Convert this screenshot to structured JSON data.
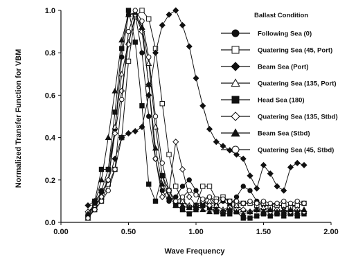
{
  "chart_data": {
    "type": "line",
    "title": "",
    "xlabel": "Wave Frequency",
    "ylabel": "Normalized Transfer Function for VBM",
    "xlim": [
      0.0,
      2.0
    ],
    "ylim": [
      0.0,
      1.0
    ],
    "xticks": [
      0.0,
      0.5,
      1.0,
      1.5,
      2.0
    ],
    "yticks": [
      0.0,
      0.2,
      0.4,
      0.6,
      0.8,
      1.0
    ],
    "xtick_labels": [
      "0.00",
      "0.50",
      "1.00",
      "1.50",
      "2.00"
    ],
    "ytick_labels": [
      "0.0",
      "0.2",
      "0.4",
      "0.6",
      "0.8",
      "1.0"
    ],
    "grid": false,
    "legend": {
      "title": "Ballast Condition",
      "position": "top-right"
    },
    "series": [
      {
        "name": "Following Sea (0)",
        "marker": "filled-circle",
        "points": [
          [
            0.2,
            0.03
          ],
          [
            0.25,
            0.08
          ],
          [
            0.3,
            0.15
          ],
          [
            0.35,
            0.25
          ],
          [
            0.4,
            0.44
          ],
          [
            0.45,
            0.78
          ],
          [
            0.5,
            0.98
          ],
          [
            0.55,
            0.98
          ],
          [
            0.6,
            0.8
          ],
          [
            0.65,
            0.5
          ],
          [
            0.7,
            0.3
          ],
          [
            0.75,
            0.15
          ],
          [
            0.8,
            0.1
          ],
          [
            0.85,
            0.12
          ],
          [
            0.9,
            0.17
          ],
          [
            0.95,
            0.2
          ],
          [
            1.0,
            0.15
          ],
          [
            1.05,
            0.1
          ],
          [
            1.1,
            0.12
          ],
          [
            1.15,
            0.08
          ],
          [
            1.2,
            0.1
          ],
          [
            1.25,
            0.08
          ],
          [
            1.3,
            0.12
          ],
          [
            1.35,
            0.17
          ],
          [
            1.4,
            0.15
          ],
          [
            1.45,
            0.1
          ],
          [
            1.5,
            0.08
          ],
          [
            1.55,
            0.08
          ],
          [
            1.6,
            0.09
          ],
          [
            1.65,
            0.07
          ],
          [
            1.7,
            0.08
          ],
          [
            1.75,
            0.08
          ],
          [
            1.8,
            0.09
          ]
        ]
      },
      {
        "name": "Quatering Sea (45, Port)",
        "marker": "open-square",
        "points": [
          [
            0.2,
            0.03
          ],
          [
            0.25,
            0.06
          ],
          [
            0.3,
            0.1
          ],
          [
            0.35,
            0.18
          ],
          [
            0.4,
            0.25
          ],
          [
            0.45,
            0.4
          ],
          [
            0.5,
            0.76
          ],
          [
            0.55,
            0.97
          ],
          [
            0.6,
            1.0
          ],
          [
            0.65,
            0.96
          ],
          [
            0.7,
            0.82
          ],
          [
            0.75,
            0.56
          ],
          [
            0.8,
            0.32
          ],
          [
            0.85,
            0.17
          ],
          [
            0.9,
            0.1
          ],
          [
            0.95,
            0.07
          ],
          [
            1.0,
            0.08
          ],
          [
            1.05,
            0.17
          ],
          [
            1.1,
            0.17
          ],
          [
            1.15,
            0.11
          ],
          [
            1.2,
            0.12
          ],
          [
            1.25,
            0.1
          ],
          [
            1.3,
            0.09
          ],
          [
            1.35,
            0.09
          ],
          [
            1.4,
            0.09
          ],
          [
            1.45,
            0.08
          ],
          [
            1.5,
            0.09
          ],
          [
            1.55,
            0.07
          ],
          [
            1.6,
            0.08
          ],
          [
            1.65,
            0.08
          ],
          [
            1.7,
            0.07
          ],
          [
            1.75,
            0.08
          ],
          [
            1.8,
            0.09
          ]
        ]
      },
      {
        "name": "Beam Sea (Port)",
        "marker": "filled-diamond",
        "points": [
          [
            0.2,
            0.08
          ],
          [
            0.25,
            0.1
          ],
          [
            0.3,
            0.14
          ],
          [
            0.35,
            0.2
          ],
          [
            0.4,
            0.3
          ],
          [
            0.45,
            0.4
          ],
          [
            0.5,
            0.42
          ],
          [
            0.55,
            0.43
          ],
          [
            0.6,
            0.45
          ],
          [
            0.65,
            0.6
          ],
          [
            0.7,
            0.8
          ],
          [
            0.75,
            0.93
          ],
          [
            0.8,
            0.98
          ],
          [
            0.85,
            1.0
          ],
          [
            0.9,
            0.93
          ],
          [
            0.95,
            0.83
          ],
          [
            1.0,
            0.68
          ],
          [
            1.05,
            0.55
          ],
          [
            1.1,
            0.44
          ],
          [
            1.15,
            0.38
          ],
          [
            1.2,
            0.36
          ],
          [
            1.25,
            0.34
          ],
          [
            1.3,
            0.32
          ],
          [
            1.35,
            0.3
          ],
          [
            1.4,
            0.22
          ],
          [
            1.45,
            0.16
          ],
          [
            1.5,
            0.27
          ],
          [
            1.55,
            0.23
          ],
          [
            1.6,
            0.17
          ],
          [
            1.65,
            0.15
          ],
          [
            1.7,
            0.26
          ],
          [
            1.75,
            0.28
          ],
          [
            1.8,
            0.27
          ]
        ]
      },
      {
        "name": "Quatering Sea (135, Port)",
        "marker": "open-triangle",
        "points": [
          [
            0.2,
            0.02
          ],
          [
            0.25,
            0.07
          ],
          [
            0.3,
            0.12
          ],
          [
            0.35,
            0.2
          ],
          [
            0.4,
            0.45
          ],
          [
            0.45,
            0.7
          ],
          [
            0.5,
            0.85
          ],
          [
            0.55,
            0.97
          ],
          [
            0.6,
            0.92
          ],
          [
            0.65,
            0.75
          ],
          [
            0.7,
            0.45
          ],
          [
            0.75,
            0.22
          ],
          [
            0.8,
            0.12
          ],
          [
            0.85,
            0.08
          ],
          [
            0.9,
            0.1
          ],
          [
            0.95,
            0.08
          ],
          [
            1.0,
            0.07
          ],
          [
            1.05,
            0.09
          ],
          [
            1.1,
            0.1
          ],
          [
            1.15,
            0.08
          ],
          [
            1.2,
            0.06
          ],
          [
            1.25,
            0.07
          ],
          [
            1.3,
            0.08
          ],
          [
            1.35,
            0.06
          ],
          [
            1.4,
            0.05
          ],
          [
            1.45,
            0.06
          ],
          [
            1.5,
            0.07
          ],
          [
            1.55,
            0.06
          ],
          [
            1.6,
            0.05
          ],
          [
            1.65,
            0.06
          ],
          [
            1.7,
            0.05
          ],
          [
            1.75,
            0.06
          ],
          [
            1.8,
            0.05
          ]
        ]
      },
      {
        "name": "Head Sea (180)",
        "marker": "filled-square",
        "points": [
          [
            0.2,
            0.02
          ],
          [
            0.25,
            0.1
          ],
          [
            0.3,
            0.25
          ],
          [
            0.35,
            0.25
          ],
          [
            0.4,
            0.52
          ],
          [
            0.45,
            0.82
          ],
          [
            0.5,
            1.0
          ],
          [
            0.55,
            0.85
          ],
          [
            0.6,
            0.55
          ],
          [
            0.65,
            0.18
          ],
          [
            0.7,
            0.1
          ],
          [
            0.75,
            0.22
          ],
          [
            0.8,
            0.15
          ],
          [
            0.85,
            0.08
          ],
          [
            0.9,
            0.06
          ],
          [
            0.95,
            0.04
          ],
          [
            1.0,
            0.06
          ],
          [
            1.05,
            0.08
          ],
          [
            1.1,
            0.07
          ],
          [
            1.15,
            0.05
          ],
          [
            1.2,
            0.04
          ],
          [
            1.25,
            0.04
          ],
          [
            1.3,
            0.05
          ],
          [
            1.35,
            0.02
          ],
          [
            1.4,
            0.02
          ],
          [
            1.45,
            0.03
          ],
          [
            1.5,
            0.04
          ],
          [
            1.55,
            0.03
          ],
          [
            1.6,
            0.04
          ],
          [
            1.65,
            0.03
          ],
          [
            1.7,
            0.04
          ],
          [
            1.75,
            0.03
          ],
          [
            1.8,
            0.04
          ]
        ]
      },
      {
        "name": "Quatering Sea (135, Stbd)",
        "marker": "open-diamond",
        "points": [
          [
            0.2,
            0.05
          ],
          [
            0.25,
            0.08
          ],
          [
            0.3,
            0.12
          ],
          [
            0.35,
            0.2
          ],
          [
            0.4,
            0.42
          ],
          [
            0.45,
            0.62
          ],
          [
            0.5,
            0.84
          ],
          [
            0.55,
            0.98
          ],
          [
            0.6,
            0.9
          ],
          [
            0.65,
            0.65
          ],
          [
            0.7,
            0.3
          ],
          [
            0.75,
            0.12
          ],
          [
            0.8,
            0.15
          ],
          [
            0.85,
            0.38
          ],
          [
            0.9,
            0.25
          ],
          [
            0.95,
            0.12
          ],
          [
            1.0,
            0.08
          ],
          [
            1.05,
            0.1
          ],
          [
            1.1,
            0.08
          ],
          [
            1.15,
            0.06
          ],
          [
            1.2,
            0.05
          ],
          [
            1.25,
            0.07
          ],
          [
            1.3,
            0.06
          ],
          [
            1.35,
            0.06
          ],
          [
            1.4,
            0.05
          ],
          [
            1.45,
            0.06
          ],
          [
            1.5,
            0.05
          ],
          [
            1.55,
            0.05
          ],
          [
            1.6,
            0.06
          ],
          [
            1.65,
            0.05
          ],
          [
            1.7,
            0.05
          ],
          [
            1.75,
            0.06
          ],
          [
            1.8,
            0.05
          ]
        ]
      },
      {
        "name": "Beam Sea (Stbd)",
        "marker": "filled-triangle",
        "points": [
          [
            0.2,
            0.04
          ],
          [
            0.25,
            0.09
          ],
          [
            0.3,
            0.2
          ],
          [
            0.35,
            0.4
          ],
          [
            0.4,
            0.62
          ],
          [
            0.45,
            0.86
          ],
          [
            0.5,
            0.98
          ],
          [
            0.55,
            0.99
          ],
          [
            0.6,
            0.92
          ],
          [
            0.65,
            0.65
          ],
          [
            0.7,
            0.35
          ],
          [
            0.75,
            0.18
          ],
          [
            0.8,
            0.12
          ],
          [
            0.85,
            0.1
          ],
          [
            0.9,
            0.08
          ],
          [
            0.95,
            0.07
          ],
          [
            1.0,
            0.08
          ],
          [
            1.05,
            0.06
          ],
          [
            1.1,
            0.05
          ],
          [
            1.15,
            0.06
          ],
          [
            1.2,
            0.05
          ],
          [
            1.25,
            0.06
          ],
          [
            1.3,
            0.05
          ],
          [
            1.35,
            0.04
          ],
          [
            1.4,
            0.05
          ],
          [
            1.45,
            0.06
          ],
          [
            1.5,
            0.05
          ],
          [
            1.55,
            0.06
          ],
          [
            1.6,
            0.05
          ],
          [
            1.65,
            0.05
          ],
          [
            1.7,
            0.06
          ],
          [
            1.75,
            0.05
          ],
          [
            1.8,
            0.06
          ]
        ]
      },
      {
        "name": "Quatering Sea (45, Stbd)",
        "marker": "open-circle",
        "points": [
          [
            0.2,
            0.02
          ],
          [
            0.25,
            0.06
          ],
          [
            0.3,
            0.1
          ],
          [
            0.35,
            0.15
          ],
          [
            0.4,
            0.25
          ],
          [
            0.45,
            0.58
          ],
          [
            0.5,
            0.9
          ],
          [
            0.55,
            1.0
          ],
          [
            0.6,
            0.95
          ],
          [
            0.65,
            0.78
          ],
          [
            0.7,
            0.5
          ],
          [
            0.75,
            0.28
          ],
          [
            0.8,
            0.15
          ],
          [
            0.85,
            0.1
          ],
          [
            0.9,
            0.12
          ],
          [
            0.95,
            0.15
          ],
          [
            1.0,
            0.13
          ],
          [
            1.05,
            0.11
          ],
          [
            1.1,
            0.12
          ],
          [
            1.15,
            0.1
          ],
          [
            1.2,
            0.11
          ],
          [
            1.25,
            0.1
          ],
          [
            1.3,
            0.1
          ],
          [
            1.35,
            0.09
          ],
          [
            1.4,
            0.1
          ],
          [
            1.45,
            0.09
          ],
          [
            1.5,
            0.1
          ],
          [
            1.55,
            0.09
          ],
          [
            1.6,
            0.09
          ],
          [
            1.65,
            0.1
          ],
          [
            1.7,
            0.09
          ],
          [
            1.75,
            0.1
          ],
          [
            1.8,
            0.09
          ]
        ]
      }
    ]
  }
}
